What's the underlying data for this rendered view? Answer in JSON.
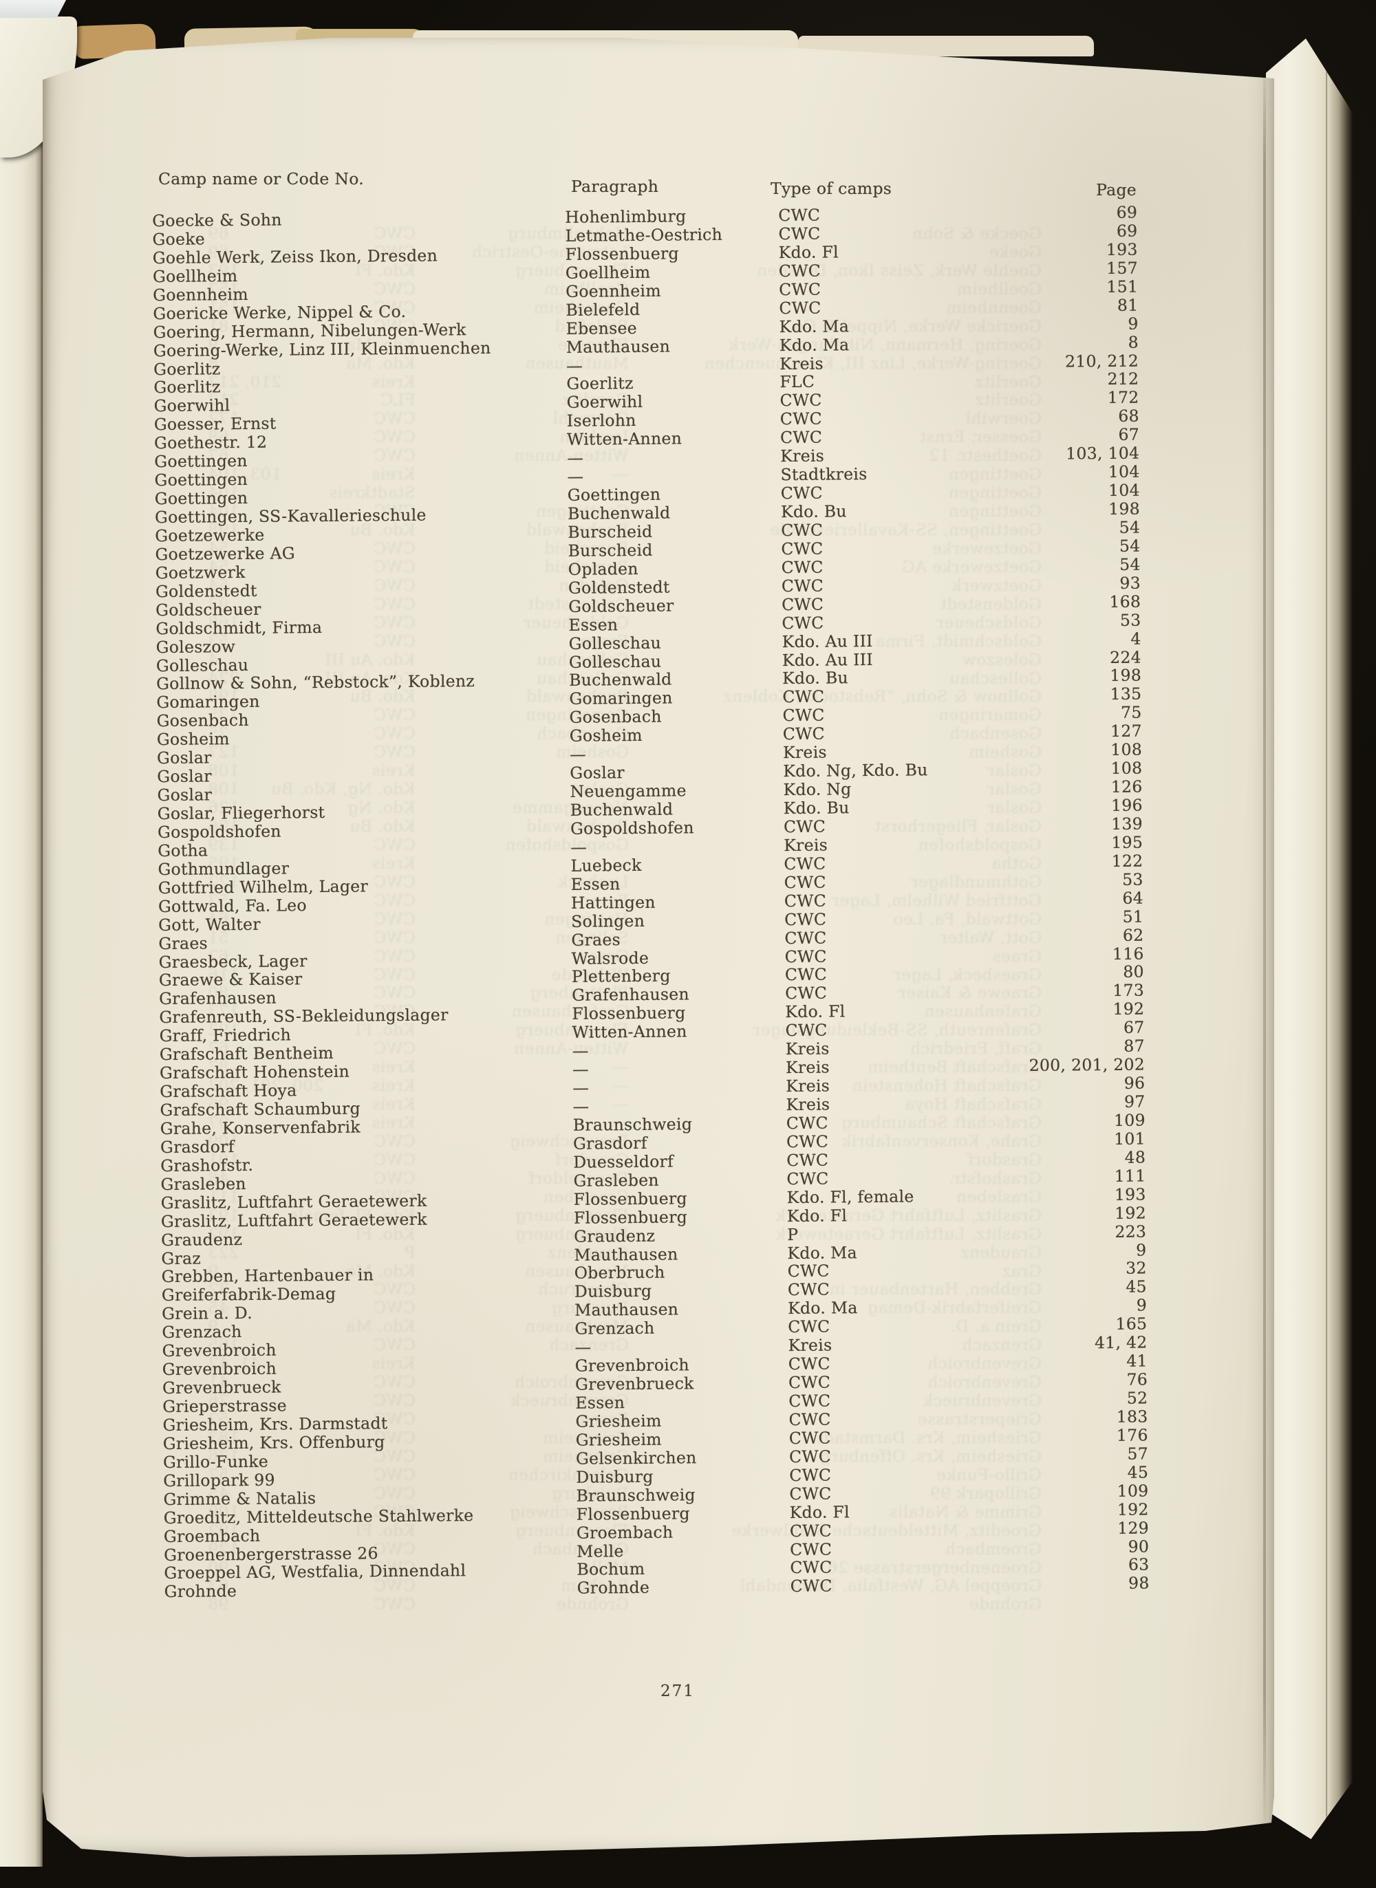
{
  "page": {
    "folio": "271"
  },
  "table": {
    "headers": {
      "name": "Camp name or Code No.",
      "paragraph": "Paragraph",
      "type": "Type of camps",
      "page": "Page"
    },
    "rows": [
      {
        "name": "Goecke & Sohn",
        "paragraph": "Hohenlimburg",
        "type": "CWC",
        "page": "69"
      },
      {
        "name": "Goeke",
        "paragraph": "Letmathe-Oestrich",
        "type": "CWC",
        "page": "69"
      },
      {
        "name": "Goehle Werk, Zeiss Ikon, Dresden",
        "paragraph": "Flossenbuerg",
        "type": "Kdo. Fl",
        "page": "193"
      },
      {
        "name": "Goellheim",
        "paragraph": "Goellheim",
        "type": "CWC",
        "page": "157"
      },
      {
        "name": "Goennheim",
        "paragraph": "Goennheim",
        "type": "CWC",
        "page": "151"
      },
      {
        "name": "Goericke Werke, Nippel & Co.",
        "paragraph": "Bielefeld",
        "type": "CWC",
        "page": "81"
      },
      {
        "name": "Goering, Hermann, Nibelungen-Werk",
        "paragraph": "Ebensee",
        "type": "Kdo. Ma",
        "page": "9"
      },
      {
        "name": "Goering-Werke, Linz III, Kleinmuenchen",
        "paragraph": "Mauthausen",
        "type": "Kdo. Ma",
        "page": "8"
      },
      {
        "name": "Goerlitz",
        "paragraph": "—",
        "type": "Kreis",
        "page": "210, 212"
      },
      {
        "name": "Goerlitz",
        "paragraph": "Goerlitz",
        "type": "FLC",
        "page": "212"
      },
      {
        "name": "Goerwihl",
        "paragraph": "Goerwihl",
        "type": "CWC",
        "page": "172"
      },
      {
        "name": "Goesser, Ernst",
        "paragraph": "Iserlohn",
        "type": "CWC",
        "page": "68"
      },
      {
        "name": "Goethestr. 12",
        "paragraph": "Witten-Annen",
        "type": "CWC",
        "page": "67"
      },
      {
        "name": "Goettingen",
        "paragraph": "—",
        "type": "Kreis",
        "page": "103, 104"
      },
      {
        "name": "Goettingen",
        "paragraph": "—",
        "type": "Stadtkreis",
        "page": "104"
      },
      {
        "name": "Goettingen",
        "paragraph": "Goettingen",
        "type": "CWC",
        "page": "104"
      },
      {
        "name": "Goettingen, SS-Kavallerieschule",
        "paragraph": "Buchenwald",
        "type": "Kdo. Bu",
        "page": "198"
      },
      {
        "name": "Goetzewerke",
        "paragraph": "Burscheid",
        "type": "CWC",
        "page": "54"
      },
      {
        "name": "Goetzewerke AG",
        "paragraph": "Burscheid",
        "type": "CWC",
        "page": "54"
      },
      {
        "name": "Goetzwerk",
        "paragraph": "Opladen",
        "type": "CWC",
        "page": "54"
      },
      {
        "name": "Goldenstedt",
        "paragraph": "Goldenstedt",
        "type": "CWC",
        "page": "93"
      },
      {
        "name": "Goldscheuer",
        "paragraph": "Goldscheuer",
        "type": "CWC",
        "page": "168"
      },
      {
        "name": "Goldschmidt, Firma",
        "paragraph": "Essen",
        "type": "CWC",
        "page": "53"
      },
      {
        "name": "Goleszow",
        "paragraph": "Golleschau",
        "type": "Kdo. Au III",
        "page": "4"
      },
      {
        "name": "Golleschau",
        "paragraph": "Golleschau",
        "type": "Kdo. Au III",
        "page": "224"
      },
      {
        "name": "Gollnow & Sohn, “Rebstock”, Koblenz",
        "paragraph": "Buchenwald",
        "type": "Kdo. Bu",
        "page": "198"
      },
      {
        "name": "Gomaringen",
        "paragraph": "Gomaringen",
        "type": "CWC",
        "page": "135"
      },
      {
        "name": "Gosenbach",
        "paragraph": "Gosenbach",
        "type": "CWC",
        "page": "75"
      },
      {
        "name": "Gosheim",
        "paragraph": "Gosheim",
        "type": "CWC",
        "page": "127"
      },
      {
        "name": "Goslar",
        "paragraph": "—",
        "type": "Kreis",
        "page": "108"
      },
      {
        "name": "Goslar",
        "paragraph": "Goslar",
        "type": "Kdo. Ng, Kdo. Bu",
        "page": "108"
      },
      {
        "name": "Goslar",
        "paragraph": "Neuengamme",
        "type": "Kdo. Ng",
        "page": "126"
      },
      {
        "name": "Goslar, Fliegerhorst",
        "paragraph": "Buchenwald",
        "type": "Kdo. Bu",
        "page": "196"
      },
      {
        "name": "Gospoldshofen",
        "paragraph": "Gospoldshofen",
        "type": "CWC",
        "page": "139"
      },
      {
        "name": "Gotha",
        "paragraph": "—",
        "type": "Kreis",
        "page": "195"
      },
      {
        "name": "Gothmundlager",
        "paragraph": "Luebeck",
        "type": "CWC",
        "page": "122"
      },
      {
        "name": "Gottfried Wilhelm, Lager",
        "paragraph": "Essen",
        "type": "CWC",
        "page": "53"
      },
      {
        "name": "Gottwald, Fa. Leo",
        "paragraph": "Hattingen",
        "type": "CWC",
        "page": "64"
      },
      {
        "name": "Gott, Walter",
        "paragraph": "Solingen",
        "type": "CWC",
        "page": "51"
      },
      {
        "name": "Graes",
        "paragraph": "Graes",
        "type": "CWC",
        "page": "62"
      },
      {
        "name": "Graesbeck, Lager",
        "paragraph": "Walsrode",
        "type": "CWC",
        "page": "116"
      },
      {
        "name": "Graewe & Kaiser",
        "paragraph": "Plettenberg",
        "type": "CWC",
        "page": "80"
      },
      {
        "name": "Grafenhausen",
        "paragraph": "Grafenhausen",
        "type": "CWC",
        "page": "173"
      },
      {
        "name": "Grafenreuth, SS-Bekleidungslager",
        "paragraph": "Flossenbuerg",
        "type": "Kdo. Fl",
        "page": "192"
      },
      {
        "name": "Graff, Friedrich",
        "paragraph": "Witten-Annen",
        "type": "CWC",
        "page": "67"
      },
      {
        "name": "Grafschaft Bentheim",
        "paragraph": "—",
        "type": "Kreis",
        "page": "87"
      },
      {
        "name": "Grafschaft Hohenstein",
        "paragraph": "—",
        "type": "Kreis",
        "page": "200, 201, 202"
      },
      {
        "name": "Grafschaft Hoya",
        "paragraph": "—",
        "type": "Kreis",
        "page": "96"
      },
      {
        "name": "Grafschaft Schaumburg",
        "paragraph": "—",
        "type": "Kreis",
        "page": "97"
      },
      {
        "name": "Grahe, Konservenfabrik",
        "paragraph": "Braunschweig",
        "type": "CWC",
        "page": "109"
      },
      {
        "name": "Grasdorf",
        "paragraph": "Grasdorf",
        "type": "CWC",
        "page": "101"
      },
      {
        "name": "Grashofstr.",
        "paragraph": "Duesseldorf",
        "type": "CWC",
        "page": "48"
      },
      {
        "name": "Grasleben",
        "paragraph": "Grasleben",
        "type": "CWC",
        "page": "111"
      },
      {
        "name": "Graslitz, Luftfahrt Geraetewerk",
        "paragraph": "Flossenbuerg",
        "type": "Kdo. Fl, female",
        "page": "193"
      },
      {
        "name": "Graslitz, Luftfahrt Geraetewerk",
        "paragraph": "Flossenbuerg",
        "type": "Kdo. Fl",
        "page": "192"
      },
      {
        "name": "Graudenz",
        "paragraph": "Graudenz",
        "type": "P",
        "page": "223"
      },
      {
        "name": "Graz",
        "paragraph": "Mauthausen",
        "type": "Kdo. Ma",
        "page": "9"
      },
      {
        "name": "Grebben, Hartenbauer in",
        "paragraph": "Oberbruch",
        "type": "CWC",
        "page": "32"
      },
      {
        "name": "Greiferfabrik-Demag",
        "paragraph": "Duisburg",
        "type": "CWC",
        "page": "45"
      },
      {
        "name": "Grein a. D.",
        "paragraph": "Mauthausen",
        "type": "Kdo. Ma",
        "page": "9"
      },
      {
        "name": "Grenzach",
        "paragraph": "Grenzach",
        "type": "CWC",
        "page": "165"
      },
      {
        "name": "Grevenbroich",
        "paragraph": "—",
        "type": "Kreis",
        "page": "41, 42"
      },
      {
        "name": "Grevenbroich",
        "paragraph": "Grevenbroich",
        "type": "CWC",
        "page": "41"
      },
      {
        "name": "Grevenbrueck",
        "paragraph": "Grevenbrueck",
        "type": "CWC",
        "page": "76"
      },
      {
        "name": "Grieperstrasse",
        "paragraph": "Essen",
        "type": "CWC",
        "page": "52"
      },
      {
        "name": "Griesheim, Krs. Darmstadt",
        "paragraph": "Griesheim",
        "type": "CWC",
        "page": "183"
      },
      {
        "name": "Griesheim, Krs. Offenburg",
        "paragraph": "Griesheim",
        "type": "CWC",
        "page": "176"
      },
      {
        "name": "Grillo-Funke",
        "paragraph": "Gelsenkirchen",
        "type": "CWC",
        "page": "57"
      },
      {
        "name": "Grillopark 99",
        "paragraph": "Duisburg",
        "type": "CWC",
        "page": "45"
      },
      {
        "name": "Grimme & Natalis",
        "paragraph": "Braunschweig",
        "type": "CWC",
        "page": "109"
      },
      {
        "name": "Groeditz, Mitteldeutsche Stahlwerke",
        "paragraph": "Flossenbuerg",
        "type": "Kdo. Fl",
        "page": "192"
      },
      {
        "name": "Groembach",
        "paragraph": "Groembach",
        "type": "CWC",
        "page": "129"
      },
      {
        "name": "Groenenbergerstrasse 26",
        "paragraph": "Melle",
        "type": "CWC",
        "page": "90"
      },
      {
        "name": "Groeppel AG, Westfalia, Dinnendahl",
        "paragraph": "Bochum",
        "type": "CWC",
        "page": "63"
      },
      {
        "name": "Grohnde",
        "paragraph": "Grohnde",
        "type": "CWC",
        "page": "98"
      }
    ]
  }
}
